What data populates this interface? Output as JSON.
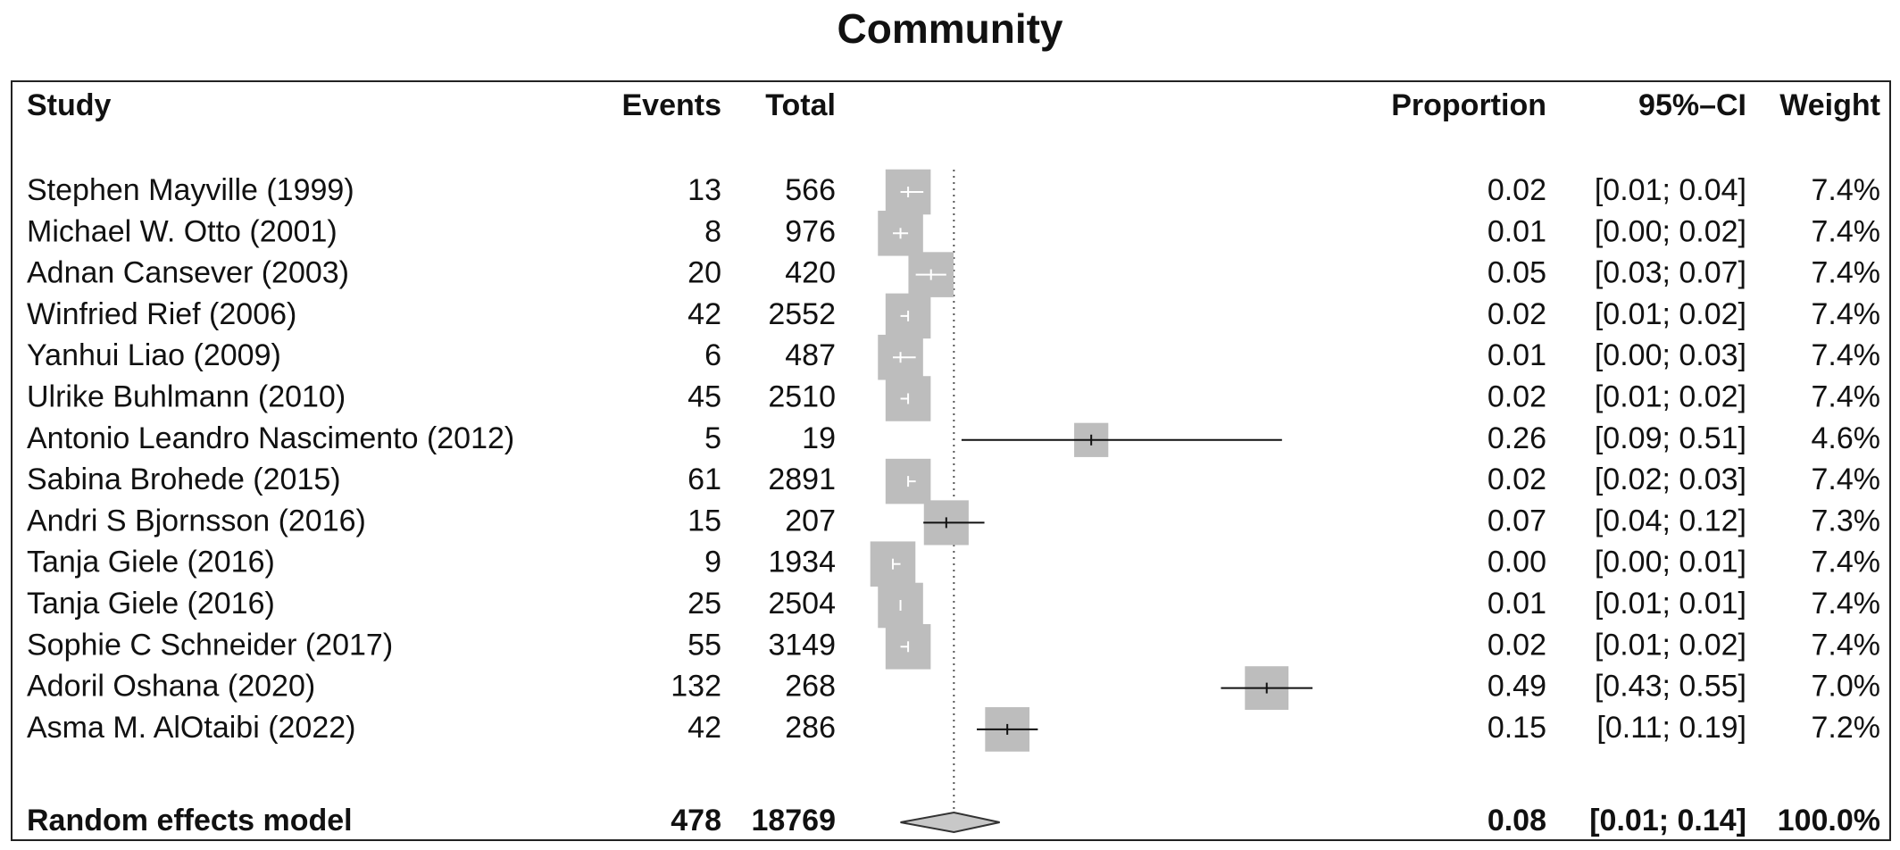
{
  "chart_data": {
    "type": "forest",
    "title": "Community",
    "columns": {
      "study": "Study",
      "events": "Events",
      "total": "Total",
      "proportion": "Proportion",
      "ci": "95%–CI",
      "weight": "Weight"
    },
    "studies": [
      {
        "name": "Stephen Mayville (1999)",
        "events": "13",
        "total": "566",
        "proportion": 0.02,
        "ci_low": 0.01,
        "ci_high": 0.04,
        "proportion_label": "0.02",
        "ci_label": "[0.01; 0.04]",
        "weight": "7.4%"
      },
      {
        "name": "Michael W. Otto (2001)",
        "events": "8",
        "total": "976",
        "proportion": 0.01,
        "ci_low": 0.0,
        "ci_high": 0.02,
        "proportion_label": "0.01",
        "ci_label": "[0.00; 0.02]",
        "weight": "7.4%"
      },
      {
        "name": "Adnan Cansever (2003)",
        "events": "20",
        "total": "420",
        "proportion": 0.05,
        "ci_low": 0.03,
        "ci_high": 0.07,
        "proportion_label": "0.05",
        "ci_label": "[0.03; 0.07]",
        "weight": "7.4%"
      },
      {
        "name": "Winfried Rief (2006)",
        "events": "42",
        "total": "2552",
        "proportion": 0.02,
        "ci_low": 0.01,
        "ci_high": 0.02,
        "proportion_label": "0.02",
        "ci_label": "[0.01; 0.02]",
        "weight": "7.4%"
      },
      {
        "name": "Yanhui Liao (2009)",
        "events": "6",
        "total": "487",
        "proportion": 0.01,
        "ci_low": 0.0,
        "ci_high": 0.03,
        "proportion_label": "0.01",
        "ci_label": "[0.00; 0.03]",
        "weight": "7.4%"
      },
      {
        "name": "Ulrike Buhlmann (2010)",
        "events": "45",
        "total": "2510",
        "proportion": 0.02,
        "ci_low": 0.01,
        "ci_high": 0.02,
        "proportion_label": "0.02",
        "ci_label": "[0.01; 0.02]",
        "weight": "7.4%"
      },
      {
        "name": "Antonio Leandro Nascimento (2012)",
        "events": "5",
        "total": "19",
        "proportion": 0.26,
        "ci_low": 0.09,
        "ci_high": 0.51,
        "proportion_label": "0.26",
        "ci_label": "[0.09; 0.51]",
        "weight": "4.6%"
      },
      {
        "name": "Sabina Brohede (2015)",
        "events": "61",
        "total": "2891",
        "proportion": 0.02,
        "ci_low": 0.02,
        "ci_high": 0.03,
        "proportion_label": "0.02",
        "ci_label": "[0.02; 0.03]",
        "weight": "7.4%"
      },
      {
        "name": "Andri S Bjornsson (2016)",
        "events": "15",
        "total": "207",
        "proportion": 0.07,
        "ci_low": 0.04,
        "ci_high": 0.12,
        "proportion_label": "0.07",
        "ci_label": "[0.04; 0.12]",
        "weight": "7.3%"
      },
      {
        "name": "Tanja Giele (2016)",
        "events": "9",
        "total": "1934",
        "proportion": 0.0,
        "ci_low": 0.0,
        "ci_high": 0.01,
        "proportion_label": "0.00",
        "ci_label": "[0.00; 0.01]",
        "weight": "7.4%"
      },
      {
        "name": "Tanja Giele (2016)",
        "events": "25",
        "total": "2504",
        "proportion": 0.01,
        "ci_low": 0.01,
        "ci_high": 0.01,
        "proportion_label": "0.01",
        "ci_label": "[0.01; 0.01]",
        "weight": "7.4%"
      },
      {
        "name": "Sophie C Schneider (2017)",
        "events": "55",
        "total": "3149",
        "proportion": 0.02,
        "ci_low": 0.01,
        "ci_high": 0.02,
        "proportion_label": "0.02",
        "ci_label": "[0.01; 0.02]",
        "weight": "7.4%"
      },
      {
        "name": "Adoril Oshana (2020)",
        "events": "132",
        "total": "268",
        "proportion": 0.49,
        "ci_low": 0.43,
        "ci_high": 0.55,
        "proportion_label": "0.49",
        "ci_label": "[0.43; 0.55]",
        "weight": "7.0%"
      },
      {
        "name": "Asma M. AlOtaibi (2022)",
        "events": "42",
        "total": "286",
        "proportion": 0.15,
        "ci_low": 0.11,
        "ci_high": 0.19,
        "proportion_label": "0.15",
        "ci_label": "[0.11; 0.19]",
        "weight": "7.2%"
      }
    ],
    "summary": {
      "name": "Random effects model",
      "events": "478",
      "total": "18769",
      "proportion": 0.08,
      "ci_low": 0.01,
      "ci_high": 0.14,
      "proportion_label": "0.08",
      "ci_label": "[0.01; 0.14]",
      "weight": "100.0%"
    },
    "xlim": [
      0,
      0.55
    ],
    "grid": false,
    "colors": {
      "box": "#bdbdbd",
      "diamond": "#c8c8c8",
      "ci_line": "#111111",
      "reference_line": "#555555"
    }
  }
}
